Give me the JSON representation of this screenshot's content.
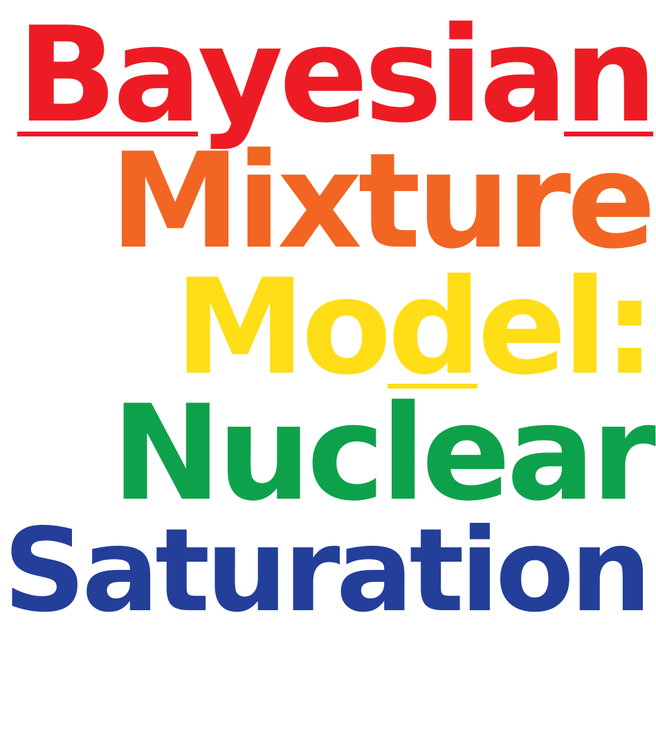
{
  "colors": {
    "red": "#ED1C24",
    "orange": "#F26522",
    "yellow": "#FFDE17",
    "green": "#0EA14B",
    "blue": "#233F99"
  },
  "title": {
    "line1": {
      "a": "Ba",
      "b": "yesia",
      "c": "n",
      "color": "#ED1C24"
    },
    "line2": {
      "text": "Mixture",
      "color": "#F26522"
    },
    "line3": {
      "a": "Mo",
      "b": "d",
      "c": "el:",
      "color": "#FFDE17"
    },
    "line4": {
      "text": "Nuclear",
      "color": "#0EA14B"
    },
    "line5": {
      "text": "Saturation",
      "color": "#233F99"
    }
  }
}
